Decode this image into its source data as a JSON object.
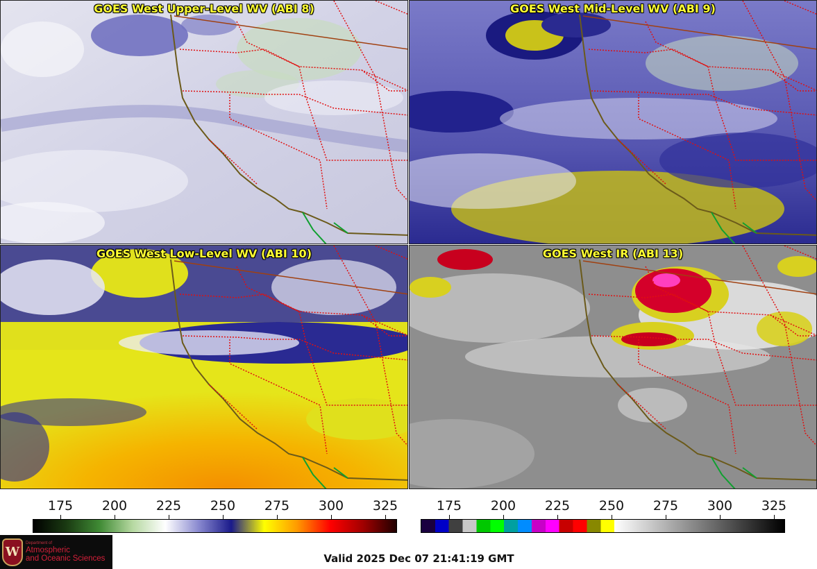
{
  "panels": [
    {
      "title": "GOES West Upper-Level WV (ABI 8)",
      "style": "upper",
      "colors": {
        "base": "#d9d9ea",
        "cloud": "#f3f3f8",
        "dry": "#3c3ca8",
        "moist_green": "#b9d8b0"
      }
    },
    {
      "title": "GOES West Mid-Level WV (ABI 9)",
      "style": "mid",
      "colors": {
        "base": "#6a6ac0",
        "cloud": "#eeeef8",
        "dry": "#1c1c88",
        "yellow": "#c9c21a"
      }
    },
    {
      "title": "GOES West Low-Level WV (ABI 10)",
      "style": "low",
      "colors": {
        "base": "#e5e51a",
        "cloud": "#f0f0f8",
        "dry": "#25258f",
        "orange": "#f5a400"
      }
    },
    {
      "title": "GOES West IR (ABI 13)",
      "style": "ir",
      "colors": {
        "base": "#8e8e8e",
        "cloud": "#e8e8e8",
        "red": "#d4002a",
        "magenta": "#ff3fbf",
        "yellow": "#d8d020"
      }
    }
  ],
  "wv_scale": {
    "ticks": [
      "175",
      "200",
      "225",
      "250",
      "275",
      "300",
      "325"
    ],
    "gradient": [
      "#000000",
      "#1a3a12",
      "#3f8a34",
      "#b5d8a0",
      "#ffffff",
      "#8a8ad0",
      "#1a1a8a",
      "#ffff00",
      "#ff9900",
      "#ff0000",
      "#a00000",
      "#200000"
    ]
  },
  "ir_scale": {
    "ticks": [
      "175",
      "200",
      "225",
      "250",
      "275",
      "300",
      "325"
    ],
    "segments": [
      "#1a0040",
      "#0000c8",
      "#404040",
      "#c8c8c8",
      "#00c800",
      "#00ff00",
      "#00a0a0",
      "#008cff",
      "#c800c8",
      "#ff00ff",
      "#c80000",
      "#ff0000",
      "#888800",
      "#ffff00"
    ]
  },
  "logo": {
    "seal": "W",
    "dept": "Department of",
    "line1": "Atmospheric",
    "line2": "and Oceanic Sciences"
  },
  "valid_text": "Valid 2025 Dec 07 21:41:19 GMT",
  "overlay_colors": {
    "coast": "#6b5a1a",
    "state": "#e01010",
    "border": "#a04010",
    "mexico": "#10a030"
  }
}
